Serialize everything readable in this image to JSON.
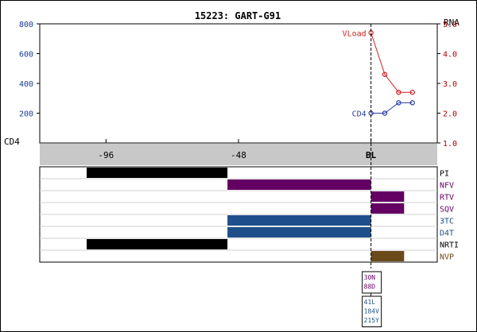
{
  "chart_data": {
    "type": "line",
    "title": "15223: GART-G91",
    "left_axis": {
      "label": "CD4",
      "ticks": [
        200,
        400,
        600,
        800
      ],
      "range": [
        0,
        800
      ],
      "color": "#1a3a9a"
    },
    "right_axis": {
      "label": "RNA",
      "ticks": [
        "1.0",
        "2.0",
        "3.0",
        "4.0",
        "5.0"
      ],
      "range": [
        1.0,
        5.0
      ],
      "color": "#b00000"
    },
    "x_axis": {
      "range": [
        -120,
        24
      ],
      "ticks": [
        {
          "value": -96,
          "label": "-96"
        },
        {
          "value": -48,
          "label": "-48"
        },
        {
          "value": 0,
          "label": "BL"
        }
      ],
      "baseline_value": 0
    },
    "series": [
      {
        "name": "VLoad",
        "axis": "right",
        "color": "#d21e1e",
        "x": [
          0,
          5,
          10,
          15
        ],
        "y": [
          4.7,
          3.3,
          2.7,
          2.7
        ]
      },
      {
        "name": "CD4",
        "axis": "left",
        "color": "#2a3aa0",
        "x": [
          0,
          5,
          10,
          15
        ],
        "y": [
          200,
          200,
          270,
          270
        ]
      }
    ],
    "drug_rows": [
      {
        "label": "PI",
        "color": "#000000",
        "label_color": "#000000",
        "segments": [
          [
            -103,
            -52
          ]
        ]
      },
      {
        "label": "NFV",
        "color": "#640064",
        "label_color": "#640064",
        "segments": [
          [
            -52,
            0
          ]
        ]
      },
      {
        "label": "RTV",
        "color": "#640064",
        "label_color": "#640064",
        "segments": [
          [
            0,
            12
          ]
        ]
      },
      {
        "label": "SQV",
        "color": "#640064",
        "label_color": "#640064",
        "segments": [
          [
            0,
            12
          ]
        ]
      },
      {
        "label": "3TC",
        "color": "#1f4f8a",
        "label_color": "#1f4f8a",
        "segments": [
          [
            -52,
            0
          ]
        ]
      },
      {
        "label": "D4T",
        "color": "#1f4f8a",
        "label_color": "#1f4f8a",
        "segments": [
          [
            -52,
            0
          ]
        ]
      },
      {
        "label": "NRTI",
        "color": "#000000",
        "label_color": "#000000",
        "segments": [
          [
            -103,
            -52
          ]
        ]
      },
      {
        "label": "NVP",
        "color": "#6b4a1a",
        "label_color": "#6b4a1a",
        "segments": [
          [
            0,
            12
          ]
        ]
      }
    ],
    "mutation_boxes": [
      {
        "color": "#640064",
        "lines": [
          "30N",
          "88D"
        ]
      },
      {
        "color": "#1f4f8a",
        "lines": [
          "41L",
          "184V",
          "215Y"
        ]
      }
    ]
  }
}
